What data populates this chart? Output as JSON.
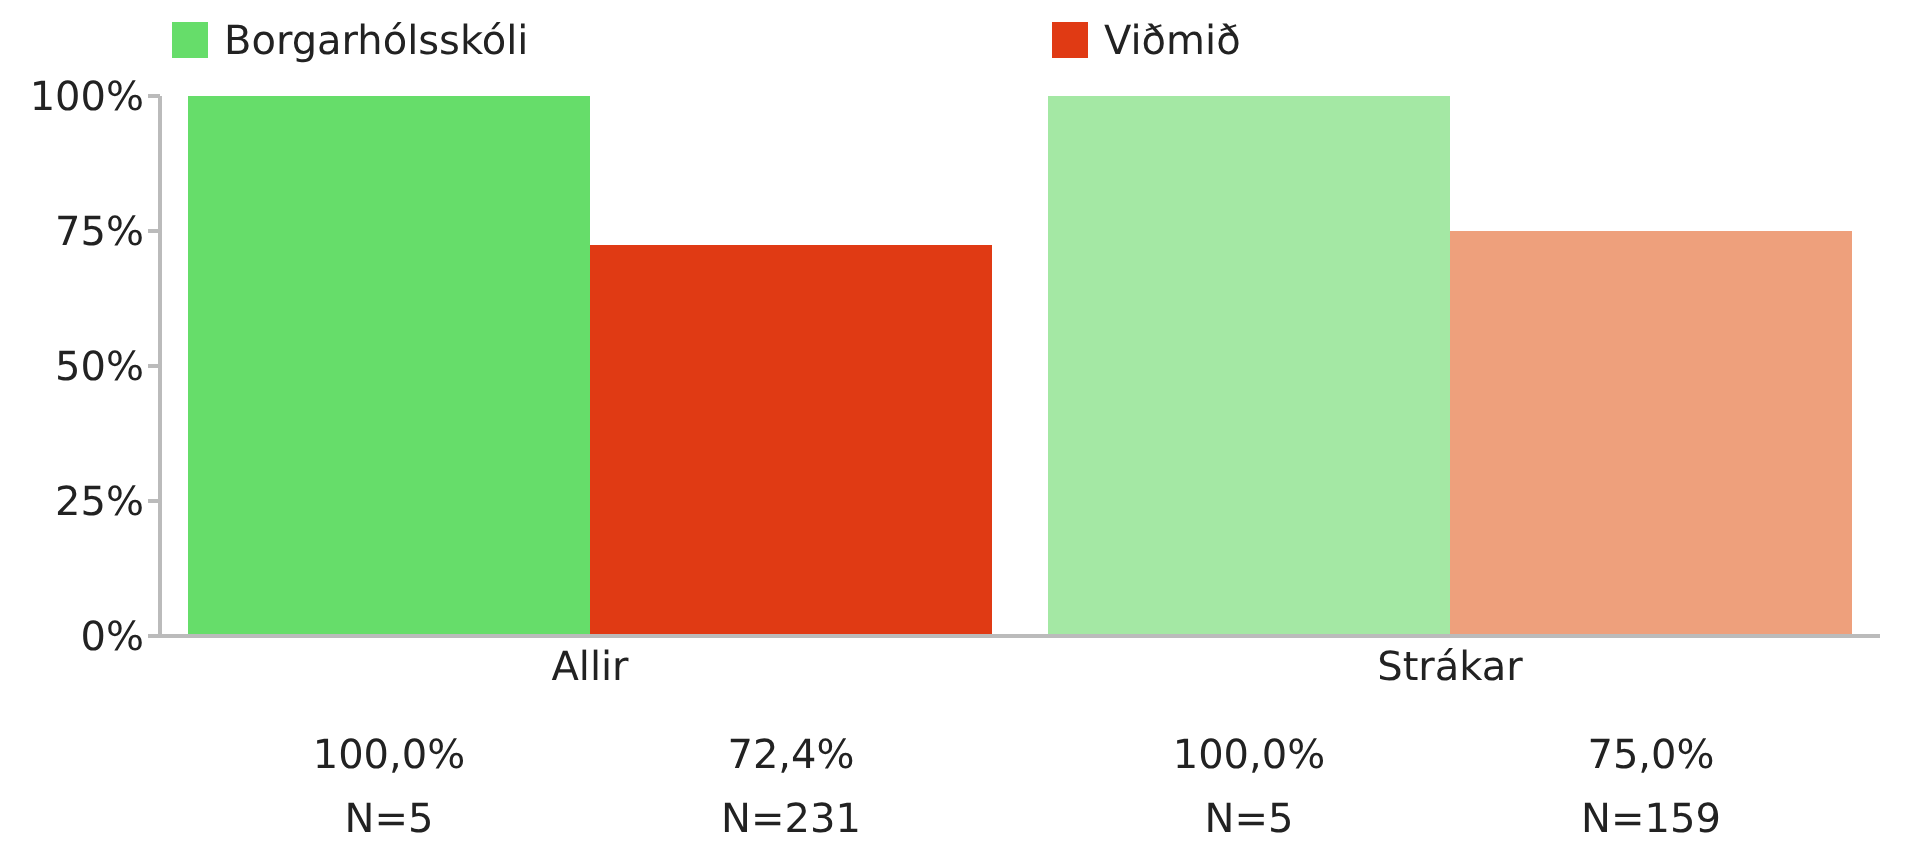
{
  "chart_data": {
    "type": "bar",
    "categories": [
      "Allir",
      "Strákar"
    ],
    "series": [
      {
        "name": "Borgarhólsskóli",
        "color": "#66dd6a",
        "colors": [
          "#66dd6a",
          "#a4e8a4"
        ],
        "values": [
          100,
          100
        ],
        "value_labels": [
          "100,0%\nN=5",
          "100,0%\nN=5"
        ]
      },
      {
        "name": "Viðmið",
        "color": "#e03a14",
        "colors": [
          "#e03a14",
          "#eea07c"
        ],
        "values": [
          72.4,
          75
        ],
        "value_labels": [
          "72,4%\nN=231",
          "75,0%\nN=159"
        ]
      }
    ],
    "ylim": [
      0,
      100
    ],
    "yticks": [
      {
        "value": 0,
        "label": "0%"
      },
      {
        "value": 25,
        "label": "25%"
      },
      {
        "value": 50,
        "label": "50%"
      },
      {
        "value": 75,
        "label": "75%"
      },
      {
        "value": 100,
        "label": "100%"
      }
    ],
    "grid": false,
    "legend": "top left"
  }
}
